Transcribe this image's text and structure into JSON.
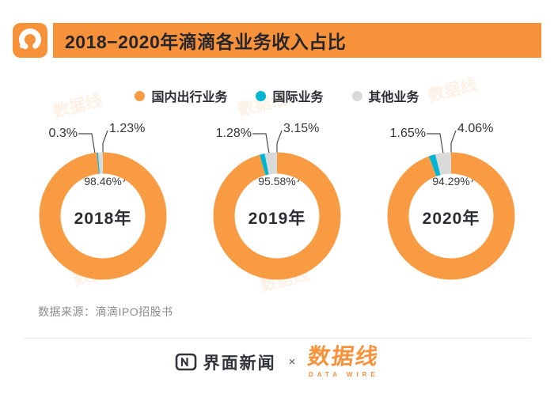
{
  "header": {
    "title": "2018−2020年滴滴各业务收入占比"
  },
  "chart_data": {
    "type": "pie",
    "title": "2018−2020年滴滴各业务收入占比",
    "unit": "%",
    "legend_position": "top",
    "categories": [
      "国内出行业务",
      "国际业务",
      "其他业务"
    ],
    "colors": [
      "#f89b43",
      "#00b5d2",
      "#d9d9d9"
    ],
    "charts": [
      {
        "year": "2018年",
        "values": [
          98.46,
          0.3,
          1.23
        ],
        "labels": [
          "98.46%",
          "0.3%",
          "1.23%"
        ]
      },
      {
        "year": "2019年",
        "values": [
          95.58,
          1.28,
          3.15
        ],
        "labels": [
          "95.58%",
          "1.28%",
          "3.15%"
        ]
      },
      {
        "year": "2020年",
        "values": [
          94.29,
          1.65,
          4.06
        ],
        "labels": [
          "94.29%",
          "1.65%",
          "4.06%"
        ]
      }
    ]
  },
  "source": "数据来源：滴滴IPO招股书",
  "footer": {
    "left_logo": "界面新闻",
    "separator": "×",
    "right_logo": "数据线",
    "right_logo_sub": "DATA WIRE"
  },
  "watermark": "数据线",
  "colors": {
    "accent_orange": "#f7923a",
    "title_text": "#25252e",
    "domestic_orange": "#f89b43",
    "international_cyan": "#00b5d2",
    "other_gray": "#d9d9d9"
  }
}
